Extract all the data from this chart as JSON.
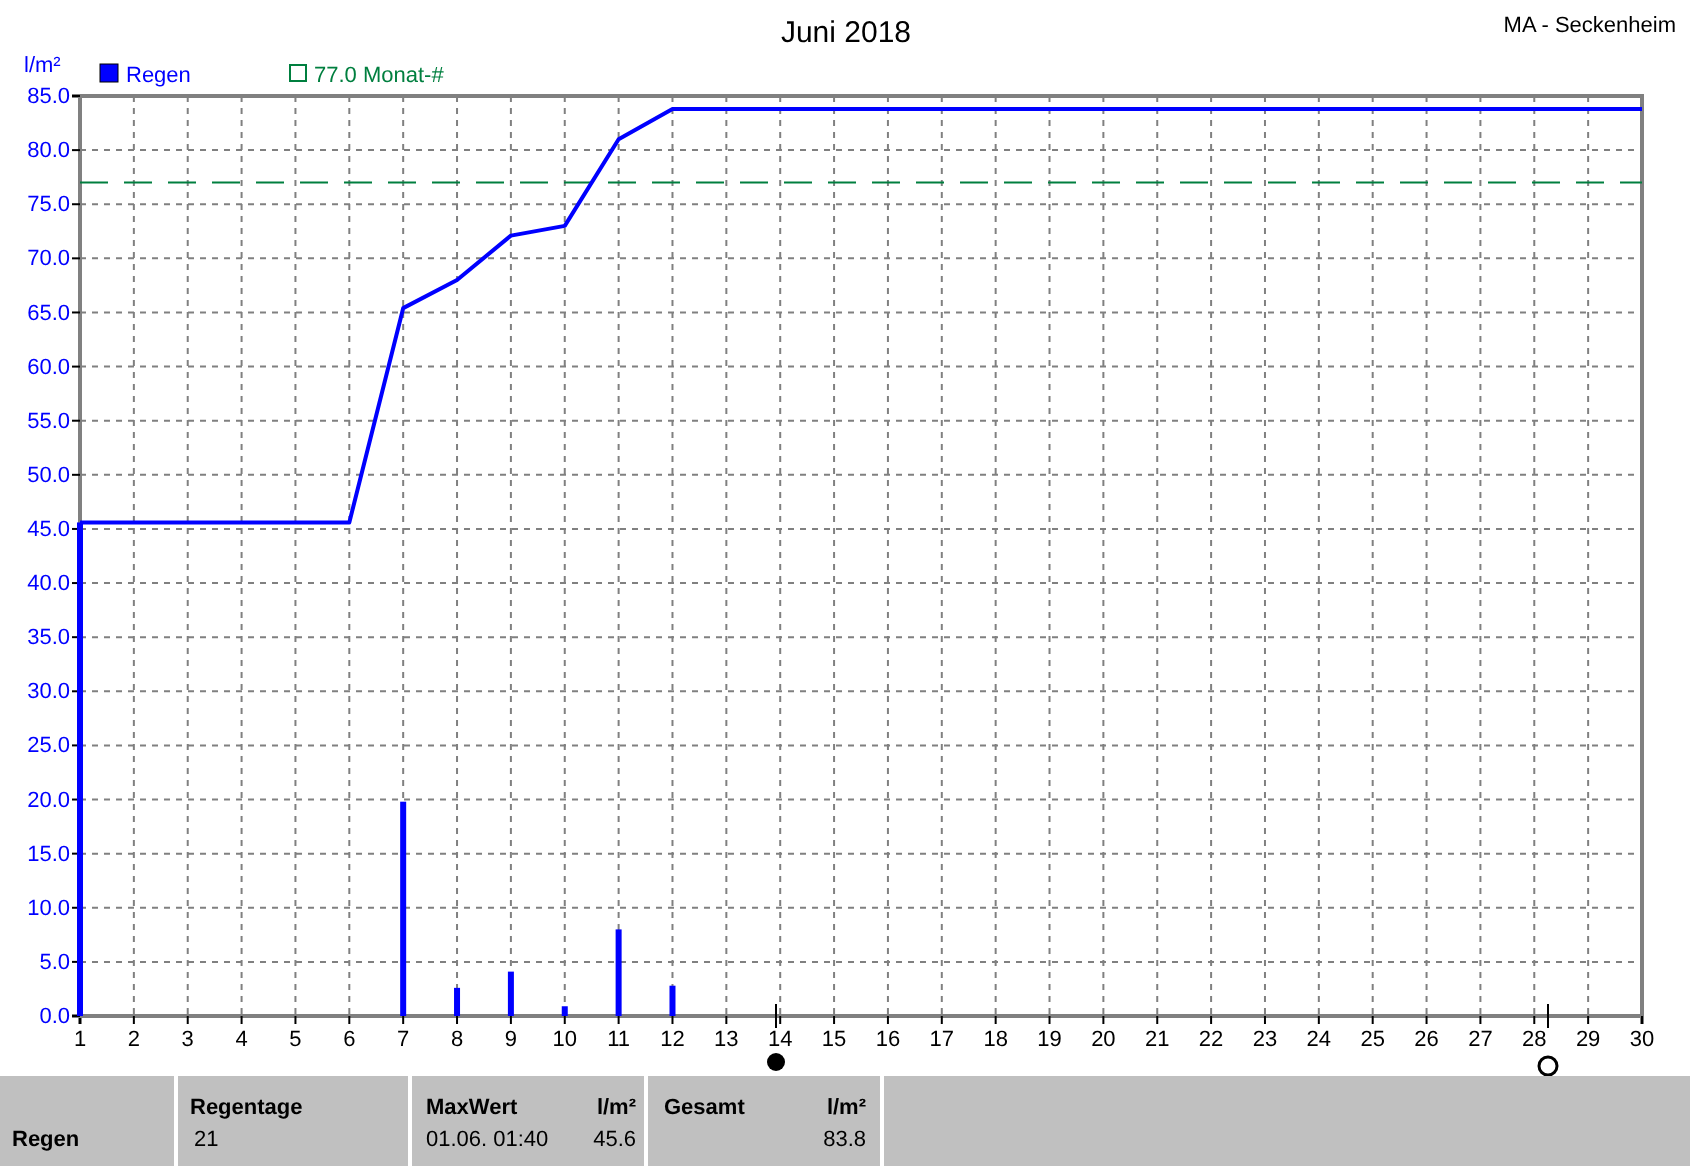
{
  "chart_data": {
    "type": "bar",
    "title": "Juni 2018",
    "subtitle": "MA - Seckenheim",
    "ylabel": "l/m²",
    "xlim": [
      1,
      30
    ],
    "xticks": [
      1,
      2,
      3,
      4,
      5,
      6,
      7,
      8,
      9,
      10,
      11,
      12,
      13,
      14,
      15,
      16,
      17,
      18,
      19,
      20,
      21,
      22,
      23,
      24,
      25,
      26,
      27,
      28,
      29,
      30
    ],
    "ylim": [
      0,
      85
    ],
    "yticks": [
      {
        "value": 0,
        "label": "0.0"
      },
      {
        "value": 5,
        "label": "5.0"
      },
      {
        "value": 10,
        "label": "10.0"
      },
      {
        "value": 15,
        "label": "15.0"
      },
      {
        "value": 20,
        "label": "20.0"
      },
      {
        "value": 25,
        "label": "25.0"
      },
      {
        "value": 30,
        "label": "30.0"
      },
      {
        "value": 35,
        "label": "35.0"
      },
      {
        "value": 40,
        "label": "40.0"
      },
      {
        "value": 45,
        "label": "45.0"
      },
      {
        "value": 50,
        "label": "50.0"
      },
      {
        "value": 55,
        "label": "55.0"
      },
      {
        "value": 60,
        "label": "60.0"
      },
      {
        "value": 65,
        "label": "65.0"
      },
      {
        "value": 70,
        "label": "70.0"
      },
      {
        "value": 75,
        "label": "75.0"
      },
      {
        "value": 80,
        "label": "80.0"
      },
      {
        "value": 85,
        "label": "85.0"
      }
    ],
    "grid": true,
    "legend": "top left",
    "series": [
      {
        "name": "Regen",
        "color": "#0000ff",
        "x": [
          1,
          7,
          8,
          9,
          10,
          11,
          12
        ],
        "values": [
          45.6,
          19.8,
          2.6,
          4.1,
          0.9,
          8.0,
          2.8
        ]
      },
      {
        "type": "line",
        "color": "#0000ff",
        "x": [
          1,
          6,
          7,
          8,
          9,
          10,
          11,
          12,
          30
        ],
        "values": [
          45.6,
          45.6,
          65.4,
          68.0,
          72.1,
          73.0,
          81.0,
          83.8,
          83.8
        ]
      }
    ],
    "ref_lines": [
      {
        "axis": "y",
        "value": 77.0,
        "label": "77.0 Monat-#",
        "color": "#007f3f",
        "line_style": "dashed"
      }
    ],
    "annotations": [
      "Regen",
      "Regentage",
      "21",
      "MaxWert",
      "l/m²",
      "01.06.  01:40",
      "45.6",
      "Gesamt",
      "l/m²",
      "83.8"
    ]
  }
}
